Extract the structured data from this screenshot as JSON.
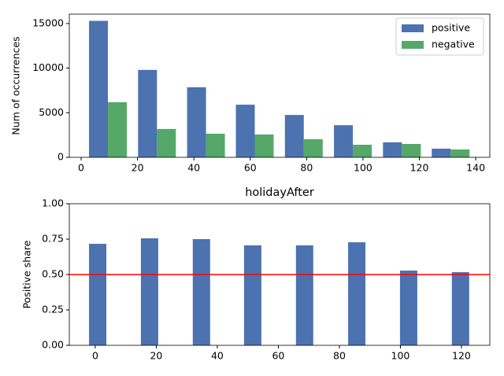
{
  "chart_data": [
    {
      "type": "bar",
      "ylabel": "Num of occurrences",
      "x": [
        9.5,
        26.9,
        44.3,
        61.6,
        79.0,
        96.4,
        113.8,
        131.1
      ],
      "series": [
        {
          "name": "positive",
          "color": "#4c72b0",
          "values": [
            15300,
            9800,
            7850,
            5900,
            4750,
            3600,
            1680,
            970
          ]
        },
        {
          "name": "negative",
          "color": "#55a868",
          "values": [
            6180,
            3180,
            2650,
            2560,
            2030,
            1410,
            1500,
            880
          ]
        }
      ],
      "xlim": [
        -4.2,
        145.0
      ],
      "xticks": [
        0,
        20,
        40,
        60,
        80,
        100,
        120,
        140
      ],
      "ylim": [
        0,
        16050
      ],
      "yticks": [
        0,
        5000,
        10000,
        15000
      ],
      "legend": "upper right"
    },
    {
      "type": "bar",
      "title": "holidayAfter",
      "ylabel": "Positive share",
      "x": [
        0.8,
        17.8,
        34.8,
        51.6,
        68.6,
        85.7,
        102.7,
        119.7
      ],
      "series": [
        {
          "color": "#4c72b0",
          "values": [
            0.717,
            0.756,
            0.75,
            0.706,
            0.706,
            0.728,
            0.528,
            0.517
          ]
        }
      ],
      "hline": {
        "value": 0.5,
        "color": "#ff0000"
      },
      "xlim": [
        -8.5,
        129.3
      ],
      "xticks": [
        0,
        20,
        40,
        60,
        80,
        100,
        120
      ],
      "ylim": [
        0,
        1
      ],
      "yticks": [
        {
          "value": 0,
          "label": "0.00"
        },
        {
          "value": 0.25,
          "label": "0.25"
        },
        {
          "value": 0.5,
          "label": "0.50"
        },
        {
          "value": 0.75,
          "label": "0.75"
        },
        {
          "value": 1,
          "label": "1.00"
        }
      ]
    }
  ]
}
